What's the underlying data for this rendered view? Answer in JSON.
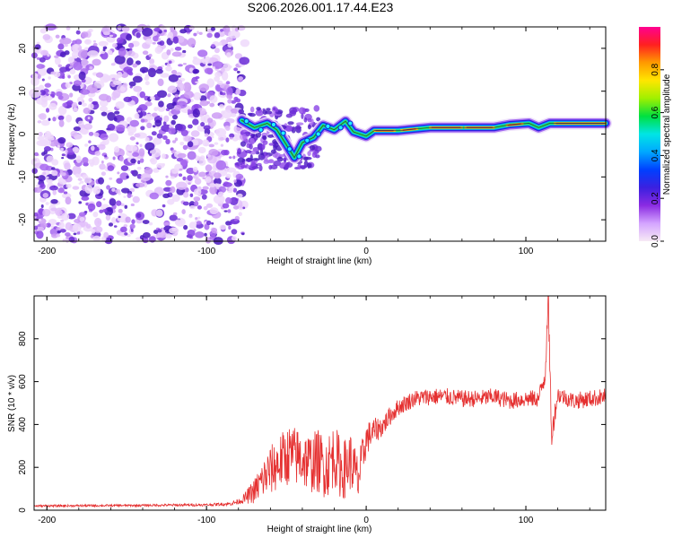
{
  "figure": {
    "title": "S206.2026.001.17.44.E23"
  },
  "colors": {
    "snr_line": "#e53030",
    "axis": "#000000",
    "speckle": "#6a2bd6",
    "colorbar_stops": [
      "#f7eaf5",
      "#d4a4ff",
      "#8b2be2",
      "#3b20e0",
      "#0040ff",
      "#00a8ff",
      "#00e5e5",
      "#00e040",
      "#a0f000",
      "#ffe600",
      "#ff9a00",
      "#ff2020",
      "#ff0090"
    ]
  },
  "chart_data": [
    {
      "type": "heatmap",
      "title": "",
      "xlabel": "Height of straight line (km)",
      "ylabel": "Frequency (Hz)",
      "xlim": [
        -208,
        150
      ],
      "ylim": [
        -25,
        25
      ],
      "x_ticks": [
        -200,
        -100,
        0,
        100
      ],
      "y_ticks": [
        -20,
        -10,
        0,
        10,
        20
      ],
      "x_tick_labels": [
        "-200",
        "-100",
        "0",
        "100"
      ],
      "y_tick_labels": [
        "-20",
        "-10",
        "0",
        "10",
        "20"
      ],
      "colorbar": {
        "label": "Normalized spectral amplitude",
        "range": [
          0,
          1
        ],
        "ticks": [
          0.0,
          0.2,
          0.4,
          0.6,
          0.8
        ],
        "tick_labels": [
          "0.0",
          "0.2",
          "0.4",
          "0.6",
          "0.8"
        ]
      },
      "noise_region_x": [
        -208,
        -78
      ],
      "ridge": [
        [
          -78,
          3.2
        ],
        [
          -70,
          1.5
        ],
        [
          -62,
          2.5
        ],
        [
          -56,
          1.0
        ],
        [
          -50,
          -2.5
        ],
        [
          -45,
          -5.5
        ],
        [
          -40,
          -2.0
        ],
        [
          -33,
          -0.8
        ],
        [
          -27,
          2.0
        ],
        [
          -20,
          1.0
        ],
        [
          -13,
          3.0
        ],
        [
          -8,
          0.5
        ],
        [
          0,
          -0.5
        ],
        [
          5,
          0.8
        ],
        [
          20,
          0.8
        ],
        [
          40,
          1.5
        ],
        [
          60,
          1.5
        ],
        [
          80,
          1.5
        ],
        [
          90,
          2.2
        ],
        [
          102,
          2.5
        ],
        [
          108,
          1.5
        ],
        [
          115,
          2.5
        ],
        [
          130,
          2.5
        ],
        [
          150,
          2.5
        ]
      ]
    },
    {
      "type": "line",
      "title": "",
      "xlabel": "Height of straight line (km)",
      "ylabel": "SNR (10 * v/v)",
      "xlim": [
        -208,
        150
      ],
      "ylim": [
        0,
        1000
      ],
      "x_ticks": [
        -200,
        -100,
        0,
        100
      ],
      "y_ticks": [
        0,
        200,
        400,
        600,
        800
      ],
      "x_tick_labels": [
        "-200",
        "-100",
        "0",
        "100"
      ],
      "y_tick_labels": [
        "0",
        "200",
        "400",
        "600",
        "800"
      ],
      "series": [
        {
          "name": "SNR",
          "x": [
            -208,
            -150,
            -100,
            -85,
            -78,
            -70,
            -62,
            -55,
            -48,
            -40,
            -35,
            -30,
            -25,
            -20,
            -15,
            -10,
            -5,
            0,
            5,
            10,
            15,
            20,
            25,
            30,
            40,
            50,
            60,
            70,
            80,
            90,
            100,
            108,
            112,
            114,
            116,
            120,
            130,
            140,
            150
          ],
          "y": [
            20,
            22,
            25,
            30,
            45,
            90,
            170,
            220,
            260,
            240,
            220,
            230,
            200,
            260,
            180,
            230,
            140,
            330,
            370,
            390,
            440,
            480,
            500,
            520,
            530,
            530,
            520,
            520,
            530,
            510,
            520,
            520,
            630,
            960,
            350,
            540,
            510,
            520,
            530
          ],
          "envelope_amplitude": [
            5,
            5,
            6,
            8,
            15,
            60,
            110,
            130,
            140,
            140,
            140,
            150,
            150,
            150,
            140,
            140,
            120,
            80,
            60,
            50,
            45,
            40,
            40,
            40,
            40,
            40,
            40,
            40,
            40,
            40,
            40,
            40,
            60,
            80,
            60,
            40,
            40,
            40,
            40
          ]
        }
      ]
    }
  ]
}
